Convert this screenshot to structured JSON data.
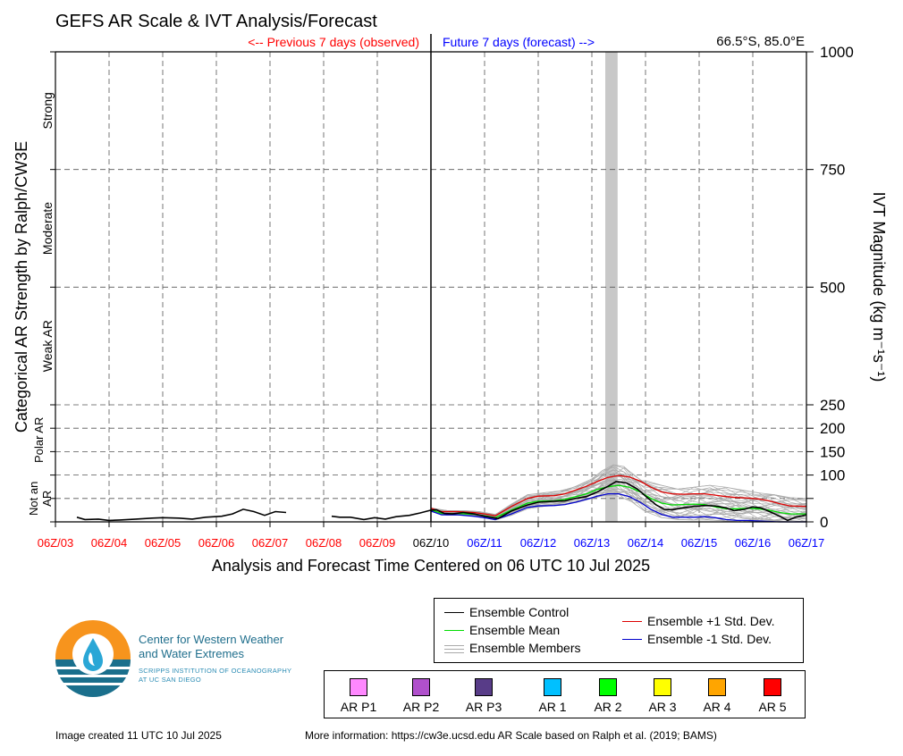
{
  "title": "GEFS AR Scale & IVT Analysis/Forecast",
  "location": "66.5°S, 85.0°E",
  "previous_label": "<-- Previous 7 days (observed)",
  "future_label": "Future 7 days (forecast) -->",
  "x_axis_title": "Analysis and Forecast Time Centered on 06 UTC 10 Jul 2025",
  "left_axis_title": "Categorical AR Strength by Ralph/CW3E",
  "right_axis_title": "IVT Magnitude (kg m⁻¹s⁻¹)",
  "categories_left": [
    {
      "label": "Strong",
      "y_center": 875
    },
    {
      "label": "Moderate",
      "y_center": 625
    },
    {
      "label": "Weak AR",
      "y_center": 375
    },
    {
      "label": "Polar AR",
      "y_center": 175
    },
    {
      "label": "Not an AR",
      "y_center": 50
    }
  ],
  "colors": {
    "observed": "#ff0000",
    "forecast": "#0000ff",
    "control": "#000000",
    "mean": "#00dd00",
    "plus": "#dd0000",
    "minus": "#0000cc",
    "members": "#aaaaaa",
    "highlight": "#c8c8c8"
  },
  "legend": {
    "control": "Ensemble Control",
    "mean": "Ensemble Mean",
    "members": "Ensemble Members",
    "plus": "Ensemble +1 Std. Dev.",
    "minus": "Ensemble -1 Std. Dev."
  },
  "ar_scale": [
    {
      "label": "AR P1",
      "color": "#ff88ff"
    },
    {
      "label": "AR P2",
      "color": "#b050cc"
    },
    {
      "label": "AR P3",
      "color": "#583c88"
    },
    {
      "label": "AR 1",
      "color": "#00c0ff"
    },
    {
      "label": "AR 2",
      "color": "#00ff00"
    },
    {
      "label": "AR 3",
      "color": "#ffff00"
    },
    {
      "label": "AR 4",
      "color": "#ffa500"
    },
    {
      "label": "AR 5",
      "color": "#ff0000"
    }
  ],
  "logo": {
    "name_line1": "Center for Western Weather",
    "name_line2": "and Water Extremes",
    "sub_line1": "SCRIPPS INSTITUTION OF OCEANOGRAPHY",
    "sub_line2": "AT UC SAN DIEGO"
  },
  "footer_left": "Image created 11 UTC 10 Jul 2025",
  "footer_right": "More information: https://cw3e.ucsd.edu AR Scale based on Ralph et al. (2019; BAMS)",
  "chart_data": {
    "type": "line",
    "title": "GEFS AR Scale & IVT Analysis/Forecast",
    "x_unit": "days",
    "xlim": [
      0,
      14
    ],
    "x_ticks": [
      "06Z/03",
      "06Z/04",
      "06Z/05",
      "06Z/06",
      "06Z/07",
      "06Z/08",
      "06Z/09",
      "06Z/10",
      "06Z/11",
      "06Z/12",
      "06Z/13",
      "06Z/14",
      "06Z/15",
      "06Z/16",
      "06Z/17"
    ],
    "x_tick_observed_count": 7,
    "x_tick_now_index": 7,
    "y_ticks": [
      0,
      50,
      100,
      150,
      200,
      250,
      500,
      750,
      1000
    ],
    "y_tick_labels": [
      "0",
      "",
      "100",
      "150",
      "200",
      "250",
      "500",
      "750",
      "1000"
    ],
    "y_major_lines": [
      250,
      500,
      750
    ],
    "y_minor_lines": [
      50,
      100,
      150,
      200
    ],
    "ylim": [
      0,
      1000
    ],
    "highlight_span": [
      10.25,
      10.48
    ],
    "grid": true,
    "series": [
      {
        "name": "Observed IVT",
        "role": "observed",
        "segments": [
          [
            [
              0.4,
              10
            ],
            [
              0.55,
              5
            ],
            [
              0.8,
              6
            ],
            [
              1.0,
              3
            ],
            [
              1.2,
              4
            ],
            [
              1.5,
              6
            ],
            [
              1.8,
              8
            ],
            [
              2.0,
              9
            ],
            [
              2.3,
              8
            ],
            [
              2.55,
              6
            ],
            [
              2.8,
              10
            ],
            [
              3.1,
              12
            ],
            [
              3.3,
              17
            ],
            [
              3.5,
              27
            ],
            [
              3.7,
              22
            ],
            [
              3.9,
              14
            ],
            [
              4.1,
              22
            ],
            [
              4.3,
              20
            ]
          ],
          [
            [
              5.15,
              12
            ],
            [
              5.3,
              10
            ],
            [
              5.5,
              10
            ],
            [
              5.75,
              5
            ],
            [
              5.95,
              9
            ],
            [
              6.15,
              6
            ],
            [
              6.35,
              11
            ],
            [
              6.6,
              14
            ],
            [
              6.8,
              19
            ],
            [
              7.0,
              25
            ]
          ]
        ]
      },
      {
        "name": "Ensemble Control",
        "role": "control",
        "points": [
          [
            7.0,
            25
          ],
          [
            7.1,
            26
          ],
          [
            7.25,
            18
          ],
          [
            7.4,
            17
          ],
          [
            7.6,
            20
          ],
          [
            7.8,
            17
          ],
          [
            8.0,
            12
          ],
          [
            8.25,
            7
          ],
          [
            8.5,
            23
          ],
          [
            8.8,
            36
          ],
          [
            9.0,
            42
          ],
          [
            9.3,
            44
          ],
          [
            9.5,
            45
          ],
          [
            9.7,
            50
          ],
          [
            9.9,
            54
          ],
          [
            10.1,
            64
          ],
          [
            10.3,
            76
          ],
          [
            10.45,
            86
          ],
          [
            10.65,
            83
          ],
          [
            10.85,
            70
          ],
          [
            11.0,
            55
          ],
          [
            11.2,
            36
          ],
          [
            11.35,
            27
          ],
          [
            11.5,
            26
          ],
          [
            11.7,
            30
          ],
          [
            11.9,
            33
          ],
          [
            12.1,
            35
          ],
          [
            12.3,
            34
          ],
          [
            12.5,
            30
          ],
          [
            12.65,
            24
          ],
          [
            12.85,
            27
          ],
          [
            13.0,
            32
          ],
          [
            13.15,
            30
          ],
          [
            13.35,
            20
          ],
          [
            13.5,
            12
          ],
          [
            13.65,
            3
          ],
          [
            13.8,
            10
          ],
          [
            14.0,
            15
          ]
        ]
      },
      {
        "name": "Ensemble Mean",
        "role": "mean",
        "points": [
          [
            7.0,
            26
          ],
          [
            7.2,
            18
          ],
          [
            7.5,
            18
          ],
          [
            7.8,
            16
          ],
          [
            8.0,
            13
          ],
          [
            8.2,
            9
          ],
          [
            8.5,
            25
          ],
          [
            8.8,
            40
          ],
          [
            9.0,
            44
          ],
          [
            9.3,
            45
          ],
          [
            9.5,
            48
          ],
          [
            9.7,
            54
          ],
          [
            9.9,
            60
          ],
          [
            10.1,
            69
          ],
          [
            10.3,
            75
          ],
          [
            10.5,
            78
          ],
          [
            10.7,
            74
          ],
          [
            10.9,
            64
          ],
          [
            11.1,
            50
          ],
          [
            11.3,
            40
          ],
          [
            11.5,
            36
          ],
          [
            11.7,
            37
          ],
          [
            11.9,
            38
          ],
          [
            12.1,
            37
          ],
          [
            12.3,
            32
          ],
          [
            12.5,
            28
          ],
          [
            12.7,
            28
          ],
          [
            12.9,
            29
          ],
          [
            13.1,
            28
          ],
          [
            13.3,
            25
          ],
          [
            13.5,
            20
          ],
          [
            13.7,
            17
          ],
          [
            14.0,
            17
          ]
        ]
      },
      {
        "name": "Ensemble +1 Std. Dev.",
        "role": "plus",
        "points": [
          [
            7.0,
            29
          ],
          [
            7.2,
            22
          ],
          [
            7.5,
            22
          ],
          [
            7.8,
            20
          ],
          [
            8.0,
            17
          ],
          [
            8.2,
            13
          ],
          [
            8.5,
            33
          ],
          [
            8.8,
            50
          ],
          [
            9.0,
            55
          ],
          [
            9.3,
            56
          ],
          [
            9.5,
            60
          ],
          [
            9.7,
            68
          ],
          [
            9.9,
            76
          ],
          [
            10.1,
            86
          ],
          [
            10.3,
            95
          ],
          [
            10.5,
            99
          ],
          [
            10.7,
            96
          ],
          [
            10.9,
            87
          ],
          [
            11.1,
            74
          ],
          [
            11.3,
            64
          ],
          [
            11.5,
            60
          ],
          [
            11.7,
            59
          ],
          [
            11.9,
            60
          ],
          [
            12.1,
            60
          ],
          [
            12.3,
            57
          ],
          [
            12.5,
            54
          ],
          [
            12.7,
            52
          ],
          [
            12.9,
            51
          ],
          [
            13.1,
            49
          ],
          [
            13.3,
            45
          ],
          [
            13.5,
            39
          ],
          [
            13.7,
            34
          ],
          [
            14.0,
            33
          ]
        ]
      },
      {
        "name": "Ensemble -1 Std. Dev.",
        "role": "minus",
        "points": [
          [
            7.0,
            23
          ],
          [
            7.2,
            15
          ],
          [
            7.5,
            15
          ],
          [
            7.8,
            12
          ],
          [
            8.0,
            9
          ],
          [
            8.2,
            5
          ],
          [
            8.5,
            17
          ],
          [
            8.8,
            31
          ],
          [
            9.0,
            34
          ],
          [
            9.3,
            35
          ],
          [
            9.5,
            37
          ],
          [
            9.7,
            42
          ],
          [
            9.9,
            48
          ],
          [
            10.1,
            55
          ],
          [
            10.3,
            60
          ],
          [
            10.5,
            60
          ],
          [
            10.7,
            54
          ],
          [
            10.9,
            42
          ],
          [
            11.1,
            27
          ],
          [
            11.3,
            16
          ],
          [
            11.5,
            10
          ],
          [
            11.7,
            10
          ],
          [
            11.9,
            10
          ],
          [
            12.1,
            11
          ],
          [
            12.3,
            9
          ],
          [
            12.5,
            5
          ],
          [
            12.7,
            3
          ],
          [
            12.9,
            3
          ],
          [
            13.1,
            2
          ],
          [
            13.3,
            1
          ],
          [
            13.5,
            0
          ],
          [
            13.7,
            0
          ],
          [
            14.0,
            0
          ]
        ]
      }
    ],
    "members": {
      "name": "Ensemble Members",
      "count": 30,
      "x": [
        7.0,
        7.3,
        7.6,
        7.9,
        8.2,
        8.5,
        8.8,
        9.1,
        9.4,
        9.7,
        10.0,
        10.2,
        10.4,
        10.6,
        10.8,
        11.0,
        11.3,
        11.6,
        11.9,
        12.2,
        12.5,
        12.8,
        13.1,
        13.4,
        13.7,
        14.0
      ],
      "envelope_low": [
        22,
        14,
        14,
        11,
        4,
        14,
        28,
        33,
        36,
        41,
        50,
        55,
        57,
        50,
        38,
        22,
        9,
        5,
        4,
        4,
        2,
        0,
        0,
        0,
        0,
        0
      ],
      "envelope_high": [
        30,
        24,
        24,
        22,
        16,
        38,
        58,
        62,
        66,
        76,
        92,
        110,
        122,
        118,
        100,
        88,
        78,
        70,
        74,
        78,
        74,
        68,
        62,
        58,
        52,
        50
      ]
    }
  }
}
